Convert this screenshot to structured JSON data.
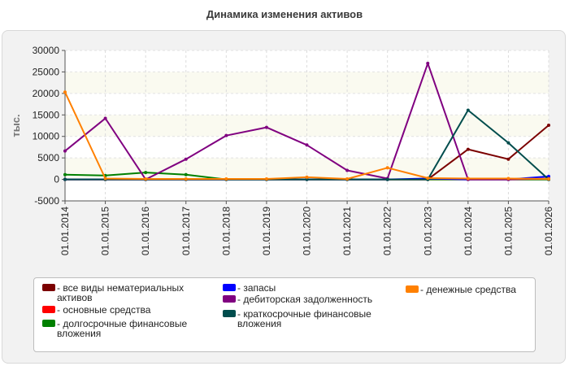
{
  "chart_data": {
    "type": "line",
    "title": "Динамика изменения активов",
    "ylabel": "тыс.",
    "xlabel": "",
    "ylim": [
      -5000,
      30000
    ],
    "yticks": [
      -5000,
      0,
      5000,
      10000,
      15000,
      20000,
      25000,
      30000
    ],
    "grid": true,
    "legend_position": "bottom",
    "categories": [
      "01.01.2014",
      "01.01.2015",
      "01.01.2016",
      "01.01.2017",
      "01.01.2018",
      "01.01.2019",
      "01.01.2020",
      "01.01.2021",
      "01.01.2022",
      "01.01.2023",
      "01.01.2024",
      "01.01.2025",
      "01.01.2026"
    ],
    "series": [
      {
        "name": "- все виды нематериальных активов",
        "color": "#7b0000",
        "values": [
          0,
          0,
          0,
          0,
          0,
          0,
          0,
          0,
          0,
          0,
          7000,
          4700,
          12600
        ]
      },
      {
        "name": "- основные средства",
        "color": "#ff0000",
        "values": [
          0,
          0,
          0,
          0,
          0,
          0,
          0,
          0,
          0,
          0,
          0,
          0,
          0
        ]
      },
      {
        "name": "- долгосрочные финансовые вложения",
        "color": "#008000",
        "values": [
          1100,
          900,
          1600,
          1100,
          0,
          0,
          0,
          0,
          0,
          0,
          0,
          0,
          0
        ]
      },
      {
        "name": "- запасы",
        "color": "#0000ff",
        "values": [
          0,
          0,
          0,
          0,
          0,
          0,
          0,
          0,
          0,
          200,
          0,
          0,
          700
        ]
      },
      {
        "name": "- дебиторская задолженность",
        "color": "#800080",
        "values": [
          6600,
          14200,
          0,
          4700,
          10200,
          12100,
          8000,
          2100,
          200,
          27000,
          0,
          0,
          200
        ]
      },
      {
        "name": "- краткосрочные финансовые вложения",
        "color": "#004d4d",
        "values": [
          0,
          0,
          0,
          0,
          0,
          0,
          0,
          0,
          0,
          0,
          16100,
          8500,
          0
        ]
      },
      {
        "name": "- денежные средства",
        "color": "#ff8000",
        "values": [
          20300,
          200,
          100,
          100,
          100,
          100,
          500,
          100,
          2700,
          300,
          200,
          200,
          100
        ]
      }
    ]
  }
}
